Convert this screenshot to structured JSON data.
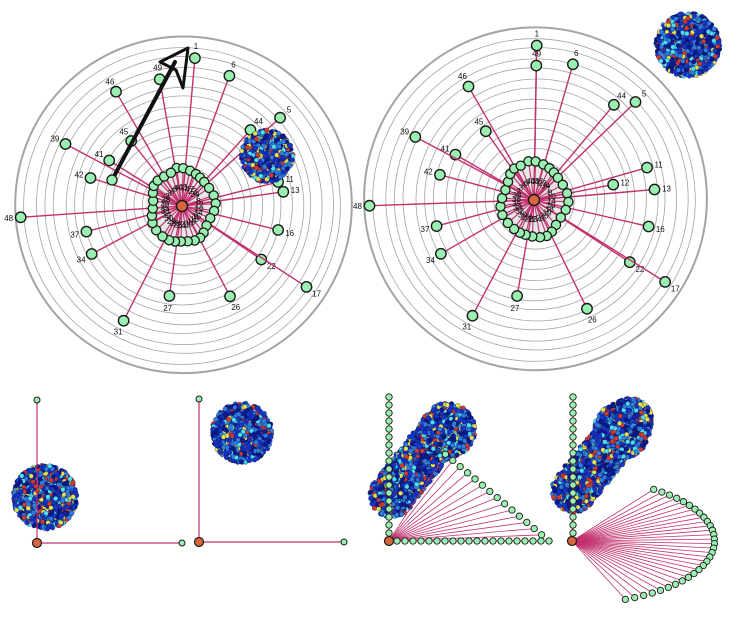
{
  "colors": {
    "background": "#ffffff",
    "ring": "#9a9a9a",
    "spoke": "#c2306e",
    "node_fill": "#9af0b0",
    "node_stroke": "#1a1a1a",
    "center_fill": "#d9653f",
    "blob_primary": "#1734c8",
    "blob_dark": "#0a1a8a",
    "blob_mid": "#2f7fe0",
    "blob_accent_cyan": "#4fe0f0",
    "blob_accent_yellow": "#e8e24a",
    "blob_accent_red": "#d43a2a",
    "arrow": "#111111"
  },
  "top_panels": [
    {
      "id": "top-left",
      "has_arrow": true,
      "has_small_blob": true,
      "rings": 14,
      "outer_labels": [
        {
          "n": "1",
          "r": 0.9,
          "deg": -85
        },
        {
          "n": "6",
          "r": 0.84,
          "deg": -70
        },
        {
          "n": "44",
          "r": 0.62,
          "deg": -48
        },
        {
          "n": "5",
          "r": 0.8,
          "deg": -42
        },
        {
          "n": "11",
          "r": 0.6,
          "deg": -14
        },
        {
          "n": "13",
          "r": 0.62,
          "deg": -8
        },
        {
          "n": "16",
          "r": 0.6,
          "deg": 14
        },
        {
          "n": "22",
          "r": 0.58,
          "deg": 34
        },
        {
          "n": "17",
          "r": 0.9,
          "deg": 33
        },
        {
          "n": "26",
          "r": 0.62,
          "deg": 62
        },
        {
          "n": "27",
          "r": 0.55,
          "deg": 98
        },
        {
          "n": "31",
          "r": 0.78,
          "deg": 117
        },
        {
          "n": "34",
          "r": 0.62,
          "deg": 152
        },
        {
          "n": "37",
          "r": 0.6,
          "deg": 165
        },
        {
          "n": "48",
          "r": 0.98,
          "deg": 176
        },
        {
          "n": "42",
          "r": 0.58,
          "deg": 197
        },
        {
          "n": "41",
          "r": 0.52,
          "deg": 212
        },
        {
          "n": "39",
          "r": 0.8,
          "deg": 208
        },
        {
          "n": "45",
          "r": 0.5,
          "deg": 232
        },
        {
          "n": "46",
          "r": 0.8,
          "deg": 240
        },
        {
          "n": "49",
          "r": 0.78,
          "deg": 260
        }
      ],
      "inner_labels": [
        "40",
        "43",
        "1",
        "47",
        "23",
        "34",
        "7",
        "8",
        "12",
        "10",
        "14",
        "15",
        "18",
        "19",
        "20",
        "21",
        "24",
        "25",
        "28",
        "29",
        "30",
        "32",
        "33",
        "35",
        "36",
        "38",
        "2",
        "3",
        "4",
        "9"
      ]
    },
    {
      "id": "top-right",
      "has_arrow": false,
      "has_small_blob": false,
      "rings": 14,
      "outer_labels": [
        {
          "n": "1",
          "r": 0.92,
          "deg": -89
        },
        {
          "n": "49",
          "r": 0.8,
          "deg": -89
        },
        {
          "n": "6",
          "r": 0.84,
          "deg": -74
        },
        {
          "n": "44",
          "r": 0.74,
          "deg": -50
        },
        {
          "n": "5",
          "r": 0.84,
          "deg": -44
        },
        {
          "n": "11",
          "r": 0.7,
          "deg": -16
        },
        {
          "n": "12",
          "r": 0.48,
          "deg": -11
        },
        {
          "n": "13",
          "r": 0.72,
          "deg": -5
        },
        {
          "n": "16",
          "r": 0.7,
          "deg": 13
        },
        {
          "n": "22",
          "r": 0.68,
          "deg": 33
        },
        {
          "n": "17",
          "r": 0.92,
          "deg": 32
        },
        {
          "n": "26",
          "r": 0.72,
          "deg": 64
        },
        {
          "n": "27",
          "r": 0.58,
          "deg": 100
        },
        {
          "n": "31",
          "r": 0.78,
          "deg": 118
        },
        {
          "n": "34",
          "r": 0.64,
          "deg": 150
        },
        {
          "n": "37",
          "r": 0.6,
          "deg": 165
        },
        {
          "n": "48",
          "r": 0.98,
          "deg": 178
        },
        {
          "n": "42",
          "r": 0.58,
          "deg": 195
        },
        {
          "n": "41",
          "r": 0.54,
          "deg": 210
        },
        {
          "n": "39",
          "r": 0.8,
          "deg": 208
        },
        {
          "n": "45",
          "r": 0.5,
          "deg": 235
        },
        {
          "n": "46",
          "r": 0.78,
          "deg": 240
        }
      ],
      "inner_labels": [
        "40",
        "43",
        "47",
        "23",
        "34",
        "7",
        "8",
        "10",
        "14",
        "15",
        "18",
        "19",
        "20",
        "21",
        "24",
        "25",
        "28",
        "29",
        "30",
        "32",
        "33",
        "35",
        "36",
        "38",
        "2",
        "3",
        "4",
        "9"
      ]
    }
  ],
  "bottom_panels": [
    {
      "id": "bottom-1",
      "kind": "axis-blob-low"
    },
    {
      "id": "bottom-2",
      "kind": "axis-blob-high"
    },
    {
      "id": "bottom-3",
      "kind": "fan-triangle"
    },
    {
      "id": "bottom-4",
      "kind": "fan-arc"
    }
  ],
  "corner_blob": {
    "present": true
  }
}
